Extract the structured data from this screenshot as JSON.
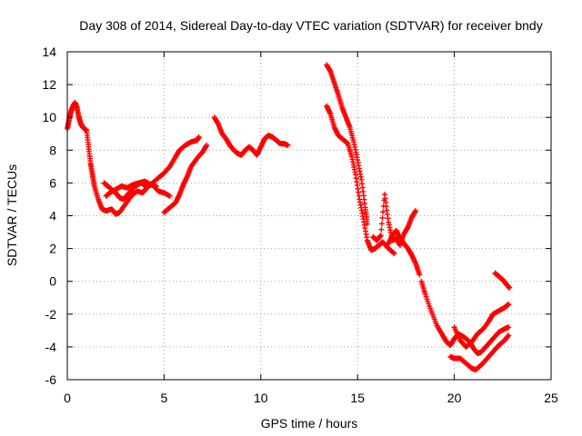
{
  "chart_data": {
    "type": "scatter",
    "title": "Day 308 of 2014, Sidereal Day-to-day VTEC variation (SDTVAR) for receiver bndy",
    "xlabel": "GPS time / hours",
    "ylabel": "SDTVAR / TECUs",
    "xlim": [
      0,
      25
    ],
    "ylim": [
      -6,
      14
    ],
    "grid": true,
    "x_ticks": [
      0,
      5,
      10,
      15,
      20,
      25
    ],
    "y_ticks": [
      -6,
      -4,
      -2,
      0,
      2,
      4,
      6,
      8,
      10,
      12,
      14
    ],
    "series": [
      {
        "name": "SDTVAR",
        "color": "#ff0000",
        "marker": "plus",
        "segments": [
          [
            [
              0.0,
              9.3
            ],
            [
              0.1,
              9.9
            ],
            [
              0.2,
              10.4
            ],
            [
              0.3,
              10.7
            ],
            [
              0.4,
              10.9
            ],
            [
              0.5,
              10.6
            ],
            [
              0.6,
              10.0
            ],
            [
              0.7,
              9.6
            ],
            [
              0.8,
              9.4
            ],
            [
              0.9,
              9.3
            ],
            [
              1.0,
              9.2
            ],
            [
              1.1,
              8.2
            ],
            [
              1.2,
              7.2
            ],
            [
              1.3,
              6.5
            ],
            [
              1.4,
              5.8
            ],
            [
              1.6,
              5.0
            ],
            [
              1.8,
              4.4
            ],
            [
              2.0,
              4.3
            ],
            [
              2.3,
              4.4
            ],
            [
              2.5,
              4.1
            ],
            [
              2.7,
              4.2
            ],
            [
              3.0,
              4.7
            ],
            [
              3.3,
              5.2
            ],
            [
              3.6,
              5.5
            ],
            [
              3.9,
              5.4
            ],
            [
              4.1,
              5.7
            ],
            [
              4.4,
              6.0
            ],
            [
              4.8,
              6.4
            ],
            [
              5.0,
              6.6
            ],
            [
              5.3,
              7.0
            ],
            [
              5.6,
              7.6
            ],
            [
              5.8,
              8.0
            ],
            [
              6.1,
              8.3
            ],
            [
              6.4,
              8.5
            ],
            [
              6.7,
              8.6
            ],
            [
              6.8,
              8.8
            ]
          ],
          [
            [
              1.9,
              6.0
            ],
            [
              2.1,
              5.8
            ],
            [
              2.3,
              5.6
            ],
            [
              2.5,
              5.4
            ],
            [
              2.7,
              5.1
            ],
            [
              2.9,
              5.0
            ],
            [
              3.2,
              5.4
            ],
            [
              3.5,
              5.8
            ],
            [
              3.8,
              6.0
            ],
            [
              4.1,
              5.8
            ],
            [
              4.4,
              5.9
            ],
            [
              4.7,
              5.5
            ],
            [
              5.0,
              5.4
            ],
            [
              5.3,
              5.2
            ]
          ],
          [
            [
              2.0,
              5.2
            ],
            [
              2.2,
              5.4
            ],
            [
              2.5,
              5.6
            ],
            [
              2.8,
              5.8
            ],
            [
              3.1,
              5.7
            ],
            [
              3.4,
              5.9
            ],
            [
              3.7,
              6.0
            ],
            [
              4.0,
              6.1
            ],
            [
              4.3,
              5.9
            ],
            [
              4.6,
              5.8
            ]
          ],
          [
            [
              5.0,
              4.2
            ],
            [
              5.3,
              4.5
            ],
            [
              5.6,
              4.8
            ],
            [
              5.8,
              5.3
            ],
            [
              6.0,
              5.9
            ],
            [
              6.2,
              6.4
            ],
            [
              6.4,
              7.0
            ],
            [
              6.7,
              7.5
            ],
            [
              7.0,
              7.9
            ],
            [
              7.2,
              8.3
            ]
          ],
          [
            [
              7.6,
              10.0
            ],
            [
              7.8,
              9.6
            ],
            [
              8.0,
              9.0
            ],
            [
              8.2,
              8.7
            ],
            [
              8.4,
              8.3
            ],
            [
              8.6,
              8.0
            ],
            [
              8.8,
              7.8
            ],
            [
              9.0,
              7.7
            ],
            [
              9.2,
              8.0
            ],
            [
              9.4,
              8.2
            ],
            [
              9.6,
              8.0
            ],
            [
              9.8,
              7.7
            ],
            [
              10.0,
              8.2
            ],
            [
              10.2,
              8.7
            ],
            [
              10.4,
              8.9
            ],
            [
              10.6,
              8.8
            ],
            [
              10.8,
              8.6
            ],
            [
              11.0,
              8.4
            ],
            [
              11.2,
              8.4
            ],
            [
              11.4,
              8.3
            ]
          ],
          [
            [
              13.4,
              13.2
            ],
            [
              13.6,
              12.8
            ],
            [
              13.8,
              12.1
            ],
            [
              14.0,
              11.4
            ],
            [
              14.2,
              10.6
            ],
            [
              14.4,
              10.0
            ],
            [
              14.6,
              9.4
            ],
            [
              14.8,
              8.5
            ],
            [
              15.0,
              7.4
            ],
            [
              15.2,
              6.2
            ],
            [
              15.4,
              4.5
            ],
            [
              15.5,
              3.5
            ]
          ],
          [
            [
              13.4,
              10.7
            ],
            [
              13.6,
              10.2
            ],
            [
              13.8,
              9.4
            ],
            [
              14.0,
              8.9
            ],
            [
              14.3,
              8.6
            ],
            [
              14.5,
              8.4
            ],
            [
              14.7,
              7.6
            ],
            [
              14.9,
              6.5
            ],
            [
              15.1,
              5.0
            ],
            [
              15.3,
              3.8
            ],
            [
              15.5,
              2.5
            ],
            [
              15.7,
              1.9
            ],
            [
              15.9,
              2.0
            ],
            [
              16.1,
              2.2
            ],
            [
              16.3,
              2.4
            ],
            [
              16.6,
              2.0
            ],
            [
              16.9,
              1.7
            ]
          ],
          [
            [
              15.8,
              2.7
            ],
            [
              16.0,
              2.5
            ],
            [
              16.2,
              2.8
            ],
            [
              16.4,
              5.3
            ],
            [
              16.6,
              3.6
            ],
            [
              16.8,
              2.5
            ],
            [
              17.0,
              2.6
            ],
            [
              17.2,
              2.2
            ],
            [
              17.4,
              2.9
            ],
            [
              17.6,
              3.3
            ],
            [
              17.8,
              3.9
            ],
            [
              18.0,
              4.3
            ]
          ],
          [
            [
              16.6,
              2.3
            ],
            [
              16.8,
              2.8
            ],
            [
              17.0,
              3.1
            ],
            [
              17.2,
              2.6
            ],
            [
              17.4,
              2.3
            ],
            [
              17.6,
              2.0
            ],
            [
              17.8,
              1.6
            ],
            [
              18.0,
              1.1
            ],
            [
              18.2,
              0.4
            ]
          ],
          [
            [
              18.3,
              0.0
            ],
            [
              18.5,
              -0.8
            ],
            [
              18.8,
              -1.8
            ],
            [
              19.1,
              -2.7
            ],
            [
              19.4,
              -3.3
            ],
            [
              19.6,
              -3.7
            ],
            [
              19.8,
              -3.9
            ],
            [
              20.0,
              -3.5
            ],
            [
              20.2,
              -3.2
            ],
            [
              20.5,
              -3.4
            ],
            [
              20.8,
              -3.7
            ],
            [
              21.0,
              -4.1
            ],
            [
              21.2,
              -4.4
            ],
            [
              21.4,
              -4.3
            ],
            [
              21.7,
              -3.9
            ],
            [
              22.0,
              -3.5
            ],
            [
              22.3,
              -3.1
            ],
            [
              22.6,
              -2.9
            ],
            [
              22.8,
              -2.8
            ]
          ],
          [
            [
              19.8,
              -4.6
            ],
            [
              20.0,
              -4.7
            ],
            [
              20.3,
              -4.7
            ],
            [
              20.6,
              -5.0
            ],
            [
              20.9,
              -5.3
            ],
            [
              21.1,
              -5.4
            ],
            [
              21.4,
              -5.1
            ],
            [
              21.7,
              -4.7
            ],
            [
              22.0,
              -4.3
            ],
            [
              22.3,
              -3.9
            ],
            [
              22.6,
              -3.6
            ],
            [
              22.8,
              -3.3
            ]
          ],
          [
            [
              20.0,
              -2.8
            ],
            [
              20.3,
              -3.6
            ],
            [
              20.6,
              -4.0
            ],
            [
              20.9,
              -3.7
            ],
            [
              21.2,
              -3.2
            ],
            [
              21.5,
              -2.9
            ],
            [
              21.8,
              -2.4
            ],
            [
              22.0,
              -2.0
            ],
            [
              22.3,
              -1.8
            ],
            [
              22.6,
              -1.6
            ],
            [
              22.8,
              -1.4
            ]
          ],
          [
            [
              22.1,
              0.5
            ],
            [
              22.3,
              0.3
            ],
            [
              22.5,
              0.1
            ],
            [
              22.7,
              -0.2
            ],
            [
              22.85,
              -0.4
            ]
          ]
        ]
      }
    ]
  }
}
